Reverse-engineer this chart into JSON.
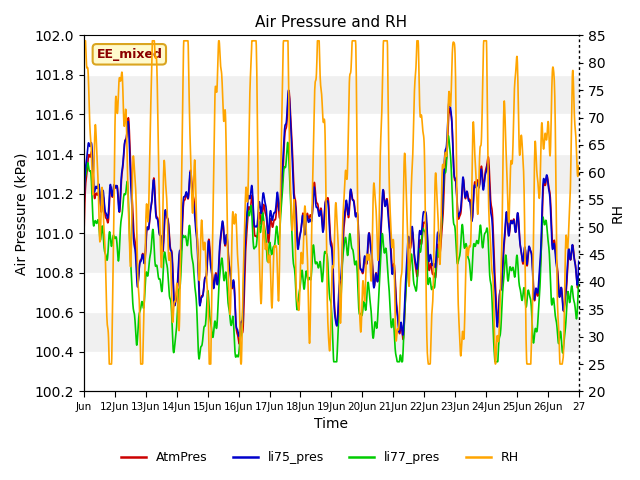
{
  "title": "Air Pressure and RH",
  "xlabel": "Time",
  "ylabel_left": "Air Pressure (kPa)",
  "ylabel_right": "RH",
  "ylim_left": [
    100.2,
    102.0
  ],
  "ylim_right": [
    20,
    85
  ],
  "yticks_left": [
    100.2,
    100.4,
    100.6,
    100.8,
    101.0,
    101.2,
    101.4,
    101.6,
    101.8,
    102.0
  ],
  "yticks_right": [
    20,
    25,
    30,
    35,
    40,
    45,
    50,
    55,
    60,
    65,
    70,
    75,
    80,
    85
  ],
  "x_start": 11,
  "x_end": 27,
  "x_ticks": [
    11,
    12,
    13,
    14,
    15,
    16,
    17,
    18,
    19,
    20,
    21,
    22,
    23,
    24,
    25,
    26,
    27
  ],
  "x_tick_labels": [
    "Jun",
    "12Jun",
    "13Jun",
    "14Jun",
    "15Jun",
    "16Jun",
    "17Jun",
    "18Jun",
    "19Jun",
    "20Jun",
    "21Jun",
    "22Jun",
    "23Jun",
    "24Jun",
    "25Jun",
    "26Jun",
    "27"
  ],
  "annotation_text": "EE_mixed",
  "annotation_color": "#8B0000",
  "annotation_bg": "#FFFACD",
  "annotation_border": "#DAA520",
  "legend_items": [
    "AtmPres",
    "li75_pres",
    "li77_pres",
    "RH"
  ],
  "legend_colors": [
    "#CC0000",
    "#0000CC",
    "#00CC00",
    "#FFA500"
  ],
  "bg_band_color": "#DCDCDC",
  "bg_band_alpha": 1.0,
  "white_band_color": "#FFFFFF",
  "figsize": [
    6.4,
    4.8
  ],
  "dpi": 100,
  "plot_bg": "#F0F0F0"
}
